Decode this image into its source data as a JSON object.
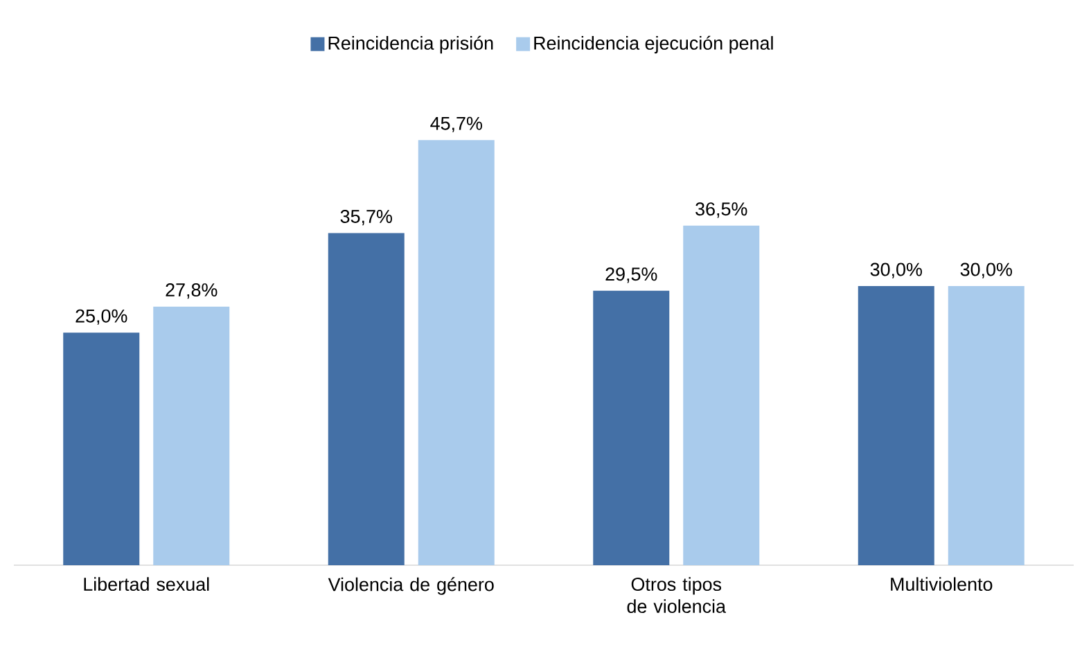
{
  "chart_data": {
    "type": "bar",
    "categories": [
      "Libertad sexual",
      "Violencia de género",
      "Otros tipos de violencia",
      "Multiviolento"
    ],
    "series": [
      {
        "name": "Reincidencia prisión",
        "color": "#4470a6",
        "values": [
          25.0,
          35.7,
          29.5,
          30.0
        ],
        "value_labels": [
          "25,0%",
          "35,7%",
          "29,5%",
          "30,0%"
        ]
      },
      {
        "name": "Reincidencia ejecución penal",
        "color": "#a9cbec",
        "values": [
          27.8,
          45.7,
          36.5,
          30.0
        ],
        "value_labels": [
          "27,8%",
          "45,7%",
          "36,5%",
          "30,0%"
        ]
      }
    ],
    "legend": "top"
  }
}
